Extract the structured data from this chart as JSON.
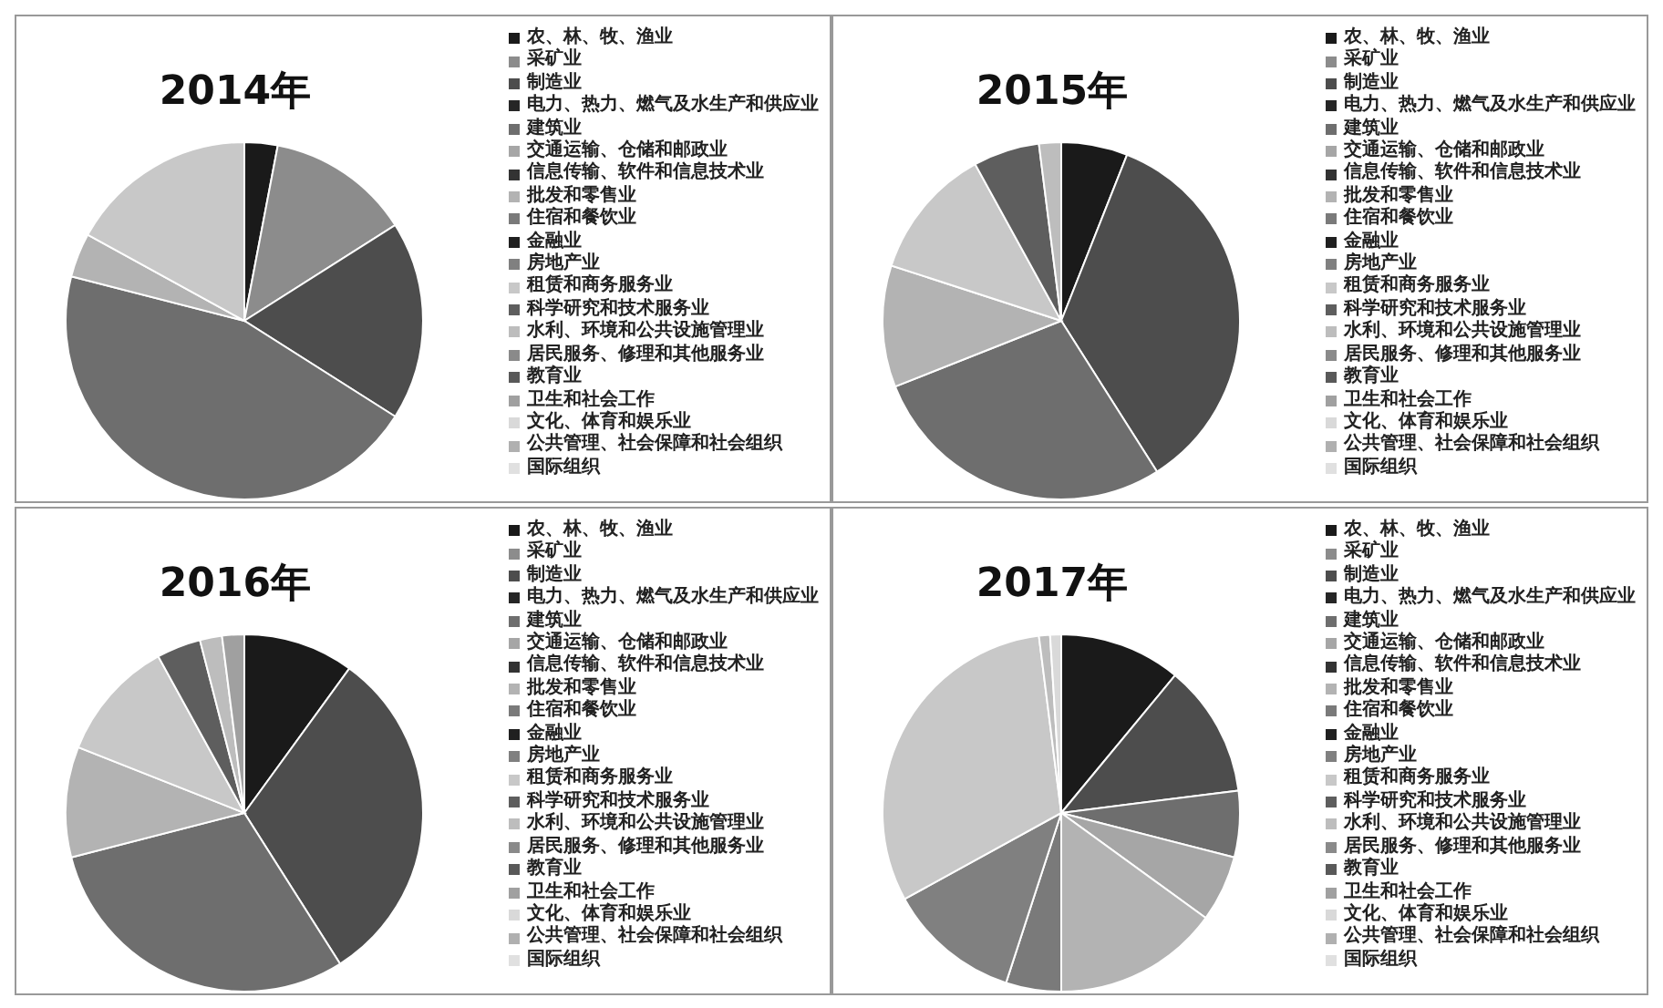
{
  "chart_data": [
    {
      "type": "pie",
      "title": "2014年",
      "legend": "right",
      "categories": [
        "农、林、牧、渔业",
        "采矿业",
        "制造业",
        "电力、热力、燃气及水生产和供应业",
        "建筑业",
        "交通运输、仓储和邮政业",
        "信息传输、软件和信息技术业",
        "批发和零售业",
        "住宿和餐饮业",
        "金融业",
        "房地产业",
        "租赁和商务服务业",
        "科学研究和技术服务业",
        "水利、环境和公共设施管理业",
        "居民服务、修理和其他服务业",
        "教育业",
        "卫生和社会工作",
        "文化、体育和娱乐业",
        "公共管理、社会保障和社会组织",
        "国际组织"
      ],
      "values": [
        3,
        13,
        18,
        0,
        45,
        0,
        0,
        4,
        0,
        0,
        0,
        17,
        0,
        0,
        0,
        0,
        0,
        0,
        0,
        0
      ],
      "colors": [
        "#1a1a1a",
        "#8c8c8c",
        "#4d4d4d",
        "#262626",
        "#6e6e6e",
        "#a6a6a6",
        "#333333",
        "#b3b3b3",
        "#7a7a7a",
        "#202020",
        "#808080",
        "#c8c8c8",
        "#5e5e5e",
        "#bdbdbd",
        "#8a8a8a",
        "#595959",
        "#a0a0a0",
        "#d9d9d9",
        "#b0b0b0",
        "#e0e0e0"
      ]
    },
    {
      "type": "pie",
      "title": "2015年",
      "legend": "right",
      "categories": [
        "农、林、牧、渔业",
        "采矿业",
        "制造业",
        "电力、热力、燃气及水生产和供应业",
        "建筑业",
        "交通运输、仓储和邮政业",
        "信息传输、软件和信息技术业",
        "批发和零售业",
        "住宿和餐饮业",
        "金融业",
        "房地产业",
        "租赁和商务服务业",
        "科学研究和技术服务业",
        "水利、环境和公共设施管理业",
        "居民服务、修理和其他服务业",
        "教育业",
        "卫生和社会工作",
        "文化、体育和娱乐业",
        "公共管理、社会保障和社会组织",
        "国际组织"
      ],
      "values": [
        6,
        0,
        35,
        0,
        28,
        0,
        0,
        11,
        0,
        0,
        0,
        12,
        6,
        2,
        0,
        0,
        0,
        0,
        0,
        0
      ],
      "colors": [
        "#1a1a1a",
        "#8c8c8c",
        "#4d4d4d",
        "#262626",
        "#6e6e6e",
        "#a6a6a6",
        "#333333",
        "#b3b3b3",
        "#7a7a7a",
        "#202020",
        "#808080",
        "#c8c8c8",
        "#5e5e5e",
        "#bdbdbd",
        "#8a8a8a",
        "#595959",
        "#a0a0a0",
        "#d9d9d9",
        "#b0b0b0",
        "#e0e0e0"
      ]
    },
    {
      "type": "pie",
      "title": "2016年",
      "legend": "right",
      "categories": [
        "农、林、牧、渔业",
        "采矿业",
        "制造业",
        "电力、热力、燃气及水生产和供应业",
        "建筑业",
        "交通运输、仓储和邮政业",
        "信息传输、软件和信息技术业",
        "批发和零售业",
        "住宿和餐饮业",
        "金融业",
        "房地产业",
        "租赁和商务服务业",
        "科学研究和技术服务业",
        "水利、环境和公共设施管理业",
        "居民服务、修理和其他服务业",
        "教育业",
        "卫生和社会工作",
        "文化、体育和娱乐业",
        "公共管理、社会保障和社会组织",
        "国际组织"
      ],
      "values": [
        10,
        0,
        31,
        0,
        30,
        0,
        0,
        10,
        0,
        0,
        0,
        11,
        4,
        2,
        0,
        0,
        2,
        0,
        0,
        0
      ],
      "colors": [
        "#1a1a1a",
        "#8c8c8c",
        "#4d4d4d",
        "#262626",
        "#6e6e6e",
        "#a6a6a6",
        "#333333",
        "#b3b3b3",
        "#7a7a7a",
        "#202020",
        "#808080",
        "#c8c8c8",
        "#5e5e5e",
        "#bdbdbd",
        "#8a8a8a",
        "#595959",
        "#a0a0a0",
        "#d9d9d9",
        "#b0b0b0",
        "#e0e0e0"
      ]
    },
    {
      "type": "pie",
      "title": "2017年",
      "legend": "right",
      "categories": [
        "农、林、牧、渔业",
        "采矿业",
        "制造业",
        "电力、热力、燃气及水生产和供应业",
        "建筑业",
        "交通运输、仓储和邮政业",
        "信息传输、软件和信息技术业",
        "批发和零售业",
        "住宿和餐饮业",
        "金融业",
        "房地产业",
        "租赁和商务服务业",
        "科学研究和技术服务业",
        "水利、环境和公共设施管理业",
        "居民服务、修理和其他服务业",
        "教育业",
        "卫生和社会工作",
        "文化、体育和娱乐业",
        "公共管理、社会保障和社会组织",
        "国际组织"
      ],
      "values": [
        11,
        0,
        12,
        0,
        6,
        6,
        0,
        15,
        5,
        0,
        12,
        31,
        0,
        1,
        0,
        0,
        0,
        1,
        0,
        0
      ],
      "colors": [
        "#1a1a1a",
        "#8c8c8c",
        "#4d4d4d",
        "#262626",
        "#6e6e6e",
        "#a6a6a6",
        "#333333",
        "#b3b3b3",
        "#7a7a7a",
        "#202020",
        "#808080",
        "#c8c8c8",
        "#5e5e5e",
        "#bdbdbd",
        "#8a8a8a",
        "#595959",
        "#a0a0a0",
        "#d9d9d9",
        "#b0b0b0",
        "#e0e0e0"
      ]
    }
  ]
}
